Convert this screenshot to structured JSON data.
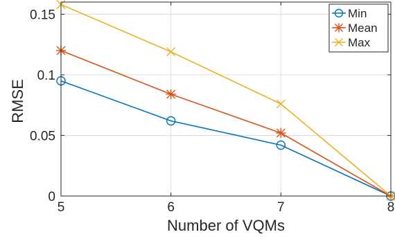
{
  "chart_data": {
    "type": "line",
    "xlabel": "Number of VQMs",
    "ylabel": "RMSE",
    "x": [
      5,
      6,
      7,
      8
    ],
    "xlim": [
      5,
      8
    ],
    "ylim": [
      0,
      0.16
    ],
    "xticks": [
      5,
      6,
      7,
      8
    ],
    "xtick_labels": [
      "5",
      "6",
      "7",
      "8"
    ],
    "yticks": [
      0,
      0.05,
      0.1,
      0.15
    ],
    "ytick_labels": [
      "0",
      "0.05",
      "0.1",
      "0.15"
    ],
    "grid": true,
    "legend_position": "top-right",
    "series": [
      {
        "name": "Min",
        "values": [
          0.095,
          0.062,
          0.042,
          0.0
        ],
        "color": "#0072BD",
        "marker": "circle"
      },
      {
        "name": "Mean",
        "values": [
          0.12,
          0.084,
          0.052,
          0.0
        ],
        "color": "#D95319",
        "marker": "asterisk"
      },
      {
        "name": "Max",
        "values": [
          0.158,
          0.119,
          0.076,
          0.0
        ],
        "color": "#EDB120",
        "marker": "x"
      }
    ]
  }
}
